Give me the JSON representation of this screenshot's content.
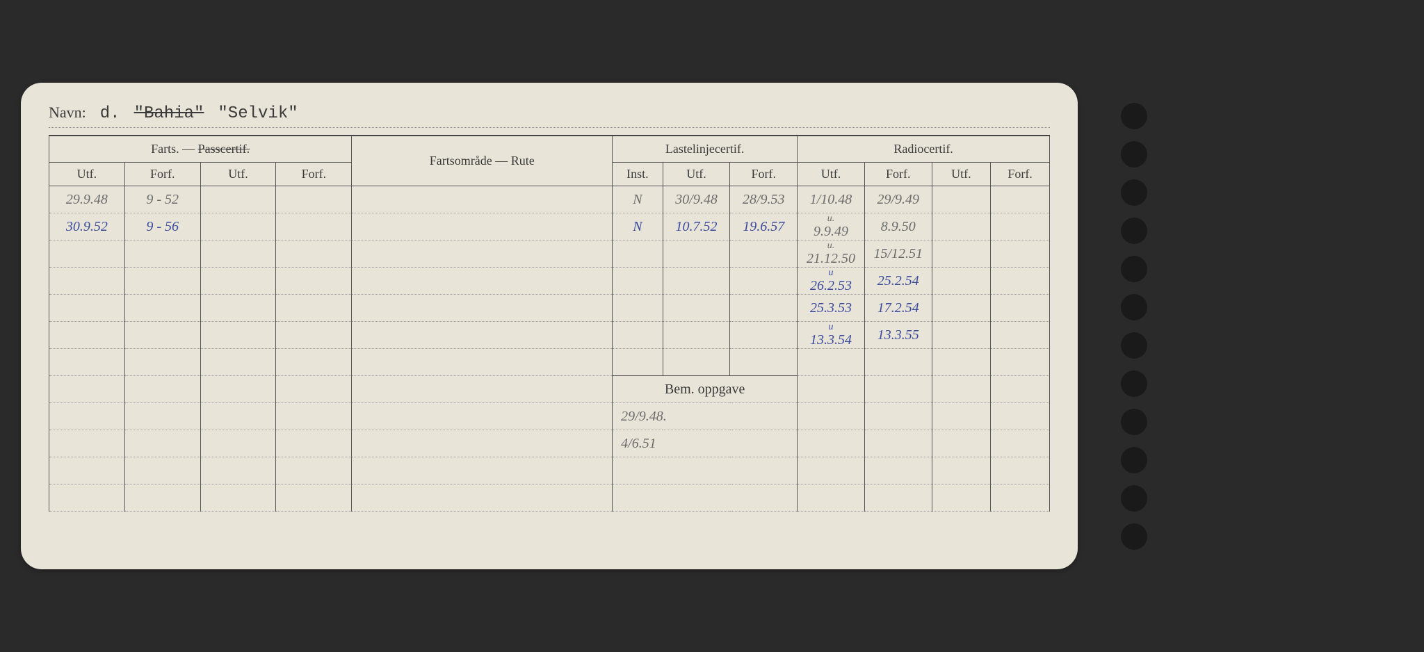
{
  "labels": {
    "navn": "Navn:",
    "navn_d": "d.",
    "navn_strike": "\"Bahia\"",
    "navn_name": "\"Selvik\"",
    "farts_section": "Farts. —",
    "passcertif": "Passcertif.",
    "fartsomrade": "Fartsområde — Rute",
    "lastelinje": "Lastelinjecertif.",
    "radiocertif": "Radiocertif.",
    "utf": "Utf.",
    "forf": "Forf.",
    "inst": "Inst.",
    "bem": "Bem. oppgave"
  },
  "farts": [
    {
      "utf": "29.9.48",
      "forf": "9 - 52",
      "style": "hand-pencil"
    },
    {
      "utf": "30.9.52",
      "forf": "9 - 56",
      "style": "hand-blue"
    }
  ],
  "lastelinje": [
    {
      "inst": "N",
      "utf": "30/9.48",
      "forf": "28/9.53",
      "style": "hand-pencil"
    },
    {
      "inst": "N",
      "utf": "10.7.52",
      "forf": "19.6.57",
      "style": "hand-blue"
    }
  ],
  "radio": [
    {
      "utf": "1/10.48",
      "forf": "29/9.49",
      "style": "hand-pencil",
      "prefix": ""
    },
    {
      "utf": "9.9.49",
      "forf": "8.9.50",
      "style": "hand-pencil",
      "prefix": "u."
    },
    {
      "utf": "21.12.50",
      "forf": "15/12.51",
      "style": "hand-pencil",
      "prefix": "u."
    },
    {
      "utf": "26.2.53",
      "forf": "25.2.54",
      "style": "hand-blue",
      "prefix": "u"
    },
    {
      "utf": "25.3.53",
      "forf": "17.2.54",
      "style": "hand-blue",
      "prefix": ""
    },
    {
      "utf": "13.3.54",
      "forf": "13.3.55",
      "style": "hand-blue",
      "prefix": "u"
    }
  ],
  "bem": [
    {
      "val": "29/9.48.",
      "style": "hand-pencil"
    },
    {
      "val": "4/6.51",
      "style": "hand-pencil"
    }
  ],
  "colors": {
    "card_bg": "#e8e4d8",
    "page_bg": "#2a2a2a",
    "pencil": "#6b6b6b",
    "blue_ink": "#3a4a9e",
    "border": "#555555",
    "dotted": "#999999"
  }
}
